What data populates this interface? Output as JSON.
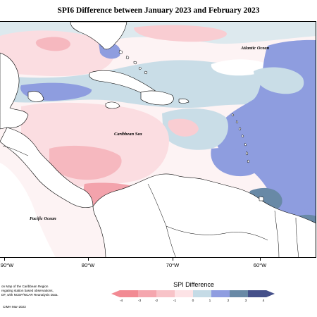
{
  "title": "SPI6 Difference between January 2023 and February 2023",
  "map_labels": {
    "atlantic": "Atlantic Ocean",
    "caribbean": "Caribbean Sea",
    "pacific": "Pacific Ocean"
  },
  "longitude_ticks": [
    "90°W",
    "80°W",
    "70°W",
    "60°W"
  ],
  "legend": {
    "title": "SPI Difference",
    "ticks": [
      "-4",
      "-3",
      "-2",
      "-1",
      "0",
      "1",
      "2",
      "3",
      "4"
    ],
    "colors": {
      "minus4": "#f28a93",
      "minus3": "#f5a6ae",
      "minus2": "#f8c3c8",
      "minus1": "#fde3e6",
      "zero": "#ffffff",
      "plus1": "#c5dbe6",
      "plus2": "#8f9de0",
      "plus3": "#6889a6",
      "plus4": "#45508a"
    }
  },
  "credits": {
    "line1": "on Map of the Caribbean Region",
    "line2": "regating station based observations,",
    "line3": "DF, with NCEP/NCAR Reanalysis Data.",
    "copyright": "CIMH Mar-2023"
  },
  "colors": {
    "land": "#ffffff",
    "outline": "#000000"
  }
}
